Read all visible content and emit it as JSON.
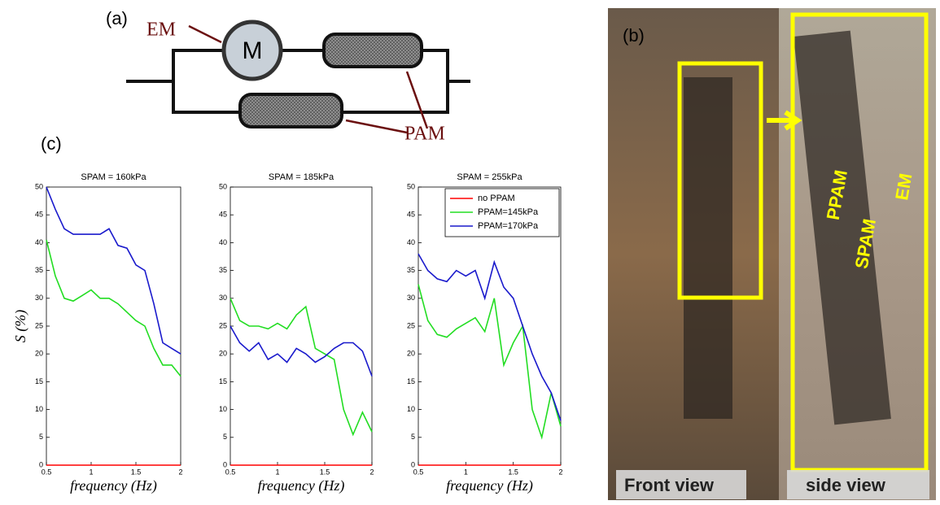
{
  "diagram": {
    "panel": "(a)",
    "motor": "M",
    "em": "EM",
    "pam": "PAM"
  },
  "photo": {
    "panel": "(b)",
    "front": "Front view",
    "side": "side view",
    "ppam": "PPAM",
    "spam": "SPAM",
    "em": "EM"
  },
  "charts_panel": "(c)",
  "chart_data": [
    {
      "type": "line",
      "title": "SPAM = 160kPa",
      "x_label": "frequency (Hz)",
      "y_label": "S (%)",
      "x": [
        0.5,
        0.6,
        0.7,
        0.8,
        0.9,
        1.0,
        1.1,
        1.2,
        1.3,
        1.4,
        1.5,
        1.6,
        1.7,
        1.8,
        1.9,
        2.0
      ],
      "xlim": [
        0.5,
        2
      ],
      "xticks": [
        0.5,
        1,
        1.5,
        2
      ],
      "ylim": [
        0,
        50
      ],
      "yticks": [
        0,
        5,
        10,
        15,
        20,
        25,
        30,
        35,
        40,
        45,
        50
      ],
      "series": [
        {
          "color": "#ff0000",
          "values": [
            0,
            0,
            0,
            0,
            0,
            0,
            0,
            0,
            0,
            0,
            0,
            0,
            0,
            0,
            0,
            0
          ]
        },
        {
          "color": "#22dd22",
          "values": [
            40.5,
            34,
            30,
            29.5,
            30.5,
            31.5,
            30,
            30,
            29,
            27.5,
            26,
            25,
            21,
            18,
            18,
            16
          ]
        },
        {
          "color": "#1a1acc",
          "values": [
            50,
            46,
            42.5,
            41.5,
            41.5,
            41.5,
            41.5,
            42.5,
            39.5,
            39,
            36,
            35,
            29,
            22,
            21,
            20
          ]
        }
      ]
    },
    {
      "type": "line",
      "title": "SPAM = 185kPa",
      "x_label": "frequency (Hz)",
      "x": [
        0.5,
        0.6,
        0.7,
        0.8,
        0.9,
        1.0,
        1.1,
        1.2,
        1.3,
        1.4,
        1.5,
        1.6,
        1.7,
        1.8,
        1.9,
        2.0
      ],
      "xlim": [
        0.5,
        2
      ],
      "xticks": [
        0.5,
        1,
        1.5,
        2
      ],
      "ylim": [
        0,
        50
      ],
      "yticks": [
        0,
        5,
        10,
        15,
        20,
        25,
        30,
        35,
        40,
        45,
        50
      ],
      "series": [
        {
          "color": "#ff0000",
          "values": [
            0,
            0,
            0,
            0,
            0,
            0,
            0,
            0,
            0,
            0,
            0,
            0,
            0,
            0,
            0,
            0
          ]
        },
        {
          "color": "#22dd22",
          "values": [
            30,
            26,
            25,
            25,
            24.5,
            25.5,
            24.5,
            27,
            28.5,
            21,
            20,
            19,
            10,
            5.5,
            9.5,
            6
          ]
        },
        {
          "color": "#1a1acc",
          "values": [
            25,
            22,
            20.5,
            22,
            19,
            20,
            18.5,
            21,
            20,
            18.5,
            19.5,
            21,
            22,
            22,
            20.5,
            16
          ]
        }
      ]
    },
    {
      "type": "line",
      "title": "SPAM = 255kPa",
      "x_label": "frequency (Hz)",
      "legend": "upper right",
      "x": [
        0.5,
        0.6,
        0.7,
        0.8,
        0.9,
        1.0,
        1.1,
        1.2,
        1.3,
        1.4,
        1.5,
        1.6,
        1.7,
        1.8,
        1.9,
        2.0
      ],
      "xlim": [
        0.5,
        2
      ],
      "xticks": [
        0.5,
        1,
        1.5,
        2
      ],
      "ylim": [
        0,
        50
      ],
      "yticks": [
        0,
        5,
        10,
        15,
        20,
        25,
        30,
        35,
        40,
        45,
        50
      ],
      "series": [
        {
          "name": "no PPAM",
          "color": "#ff0000",
          "values": [
            0,
            0,
            0,
            0,
            0,
            0,
            0,
            0,
            0,
            0,
            0,
            0,
            0,
            0,
            0,
            0
          ]
        },
        {
          "name": "PPAM=145kPa",
          "color": "#22dd22",
          "values": [
            32.5,
            26,
            23.5,
            23,
            24.5,
            25.5,
            26.5,
            24,
            30,
            18,
            22,
            25,
            10,
            5,
            13,
            7
          ]
        },
        {
          "name": "PPAM=170kPa",
          "color": "#1a1acc",
          "values": [
            38,
            35,
            33.5,
            33,
            35,
            34,
            35,
            30,
            36.5,
            32,
            30,
            25,
            20,
            16,
            13,
            8
          ]
        }
      ]
    }
  ]
}
